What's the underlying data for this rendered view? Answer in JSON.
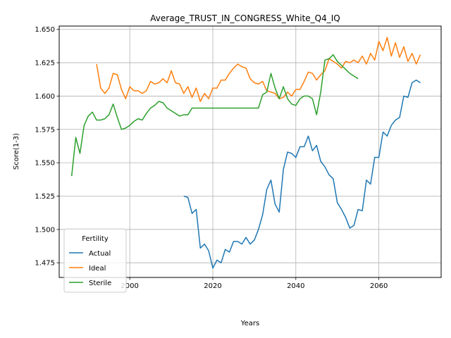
{
  "chart_data": {
    "type": "line",
    "title": "Average_TRUST_IN_CONGRESS_White_Q4_IQ",
    "xlabel": "Years",
    "ylabel": "Score(1-3)",
    "xlim": [
      1983,
      2075
    ],
    "ylim": [
      1.464,
      1.6525
    ],
    "xticks": [
      2000,
      2020,
      2040,
      2060
    ],
    "yticks": [
      1.475,
      1.5,
      1.525,
      1.55,
      1.575,
      1.6,
      1.625,
      1.65
    ],
    "ytick_labels": [
      "1.475",
      "1.500",
      "1.525",
      "1.550",
      "1.575",
      "1.600",
      "1.625",
      "1.650"
    ],
    "grid": true,
    "legend": {
      "title": "Fertility",
      "placement": "lower-left"
    },
    "series": [
      {
        "name": "Actual",
        "color": "#1f77b4",
        "x": [
          2013,
          2014,
          2015,
          2016,
          2017,
          2018,
          2019,
          2020,
          2021,
          2022,
          2023,
          2024,
          2025,
          2026,
          2027,
          2028,
          2029,
          2030,
          2031,
          2032,
          2033,
          2034,
          2035,
          2036,
          2037,
          2038,
          2039,
          2040,
          2041,
          2042,
          2043,
          2044,
          2045,
          2046,
          2047,
          2048,
          2049,
          2050,
          2051,
          2052,
          2053,
          2054,
          2055,
          2056,
          2057,
          2058,
          2059,
          2060,
          2061,
          2062,
          2063,
          2064,
          2065,
          2066,
          2067,
          2068,
          2069,
          2070
        ],
        "values": [
          1.525,
          1.524,
          1.512,
          1.515,
          1.486,
          1.489,
          1.484,
          1.471,
          1.477,
          1.475,
          1.485,
          1.483,
          1.491,
          1.491,
          1.489,
          1.494,
          1.489,
          1.492,
          1.5,
          1.511,
          1.53,
          1.537,
          1.519,
          1.513,
          1.545,
          1.558,
          1.557,
          1.554,
          1.562,
          1.562,
          1.57,
          1.559,
          1.563,
          1.551,
          1.547,
          1.541,
          1.538,
          1.52,
          1.515,
          1.509,
          1.501,
          1.503,
          1.515,
          1.514,
          1.537,
          1.534,
          1.554,
          1.554,
          1.573,
          1.57,
          1.578,
          1.582,
          1.584,
          1.6,
          1.599,
          1.61,
          1.612,
          1.61
        ]
      },
      {
        "name": "Ideal",
        "color": "#ff7f0e",
        "x": [
          1992,
          1993,
          1994,
          1995,
          1996,
          1997,
          1998,
          1999,
          2000,
          2001,
          2002,
          2003,
          2004,
          2005,
          2006,
          2007,
          2008,
          2009,
          2010,
          2011,
          2012,
          2013,
          2014,
          2015,
          2016,
          2017,
          2018,
          2019,
          2020,
          2021,
          2022,
          2023,
          2024,
          2025,
          2026,
          2027,
          2028,
          2029,
          2030,
          2031,
          2032,
          2033,
          2034,
          2035,
          2036,
          2037,
          2038,
          2039,
          2040,
          2041,
          2042,
          2043,
          2044,
          2045,
          2046,
          2047,
          2048,
          2049,
          2050,
          2051,
          2052,
          2053,
          2054,
          2055,
          2056,
          2057,
          2058,
          2059,
          2060,
          2061,
          2062,
          2063,
          2064,
          2065,
          2066,
          2067,
          2068,
          2069,
          2070
        ],
        "values": [
          1.624,
          1.606,
          1.602,
          1.606,
          1.617,
          1.616,
          1.605,
          1.598,
          1.607,
          1.604,
          1.604,
          1.602,
          1.604,
          1.611,
          1.609,
          1.61,
          1.613,
          1.61,
          1.619,
          1.61,
          1.609,
          1.602,
          1.607,
          1.599,
          1.606,
          1.596,
          1.602,
          1.598,
          1.606,
          1.606,
          1.612,
          1.612,
          1.617,
          1.621,
          1.624,
          1.622,
          1.621,
          1.613,
          1.61,
          1.609,
          1.611,
          1.604,
          1.603,
          1.602,
          1.598,
          1.599,
          1.603,
          1.6,
          1.605,
          1.605,
          1.611,
          1.618,
          1.617,
          1.612,
          1.616,
          1.619,
          1.628,
          1.626,
          1.624,
          1.621,
          1.626,
          1.625,
          1.627,
          1.625,
          1.63,
          1.624,
          1.632,
          1.627,
          1.641,
          1.634,
          1.644,
          1.63,
          1.64,
          1.629,
          1.637,
          1.626,
          1.632,
          1.624,
          1.631
        ]
      },
      {
        "name": "Sterile",
        "color": "#2ca02c",
        "x": [
          1986,
          1987,
          1988,
          1989,
          1990,
          1991,
          1992,
          1993,
          1994,
          1995,
          1996,
          1997,
          1998,
          1999,
          2000,
          2001,
          2002,
          2003,
          2004,
          2005,
          2006,
          2007,
          2008,
          2009,
          2010,
          2011,
          2012,
          2013,
          2014,
          2015,
          2016,
          2017,
          2018,
          2019,
          2020,
          2021,
          2022,
          2023,
          2024,
          2025,
          2026,
          2027,
          2028,
          2029,
          2030,
          2031,
          2032,
          2033,
          2034,
          2035,
          2036,
          2037,
          2038,
          2039,
          2040,
          2041,
          2042,
          2043,
          2044,
          2045,
          2046,
          2047,
          2048,
          2049,
          2050,
          2051,
          2052,
          2053,
          2054,
          2055
        ],
        "values": [
          1.54,
          1.569,
          1.557,
          1.578,
          1.585,
          1.588,
          1.582,
          1.582,
          1.583,
          1.586,
          1.594,
          1.584,
          1.575,
          1.576,
          1.578,
          1.581,
          1.583,
          1.582,
          1.587,
          1.591,
          1.593,
          1.596,
          1.595,
          1.591,
          1.589,
          1.587,
          1.585,
          1.586,
          1.586,
          1.591,
          1.591,
          1.591,
          1.591,
          1.591,
          1.591,
          1.591,
          1.591,
          1.591,
          1.591,
          1.591,
          1.591,
          1.591,
          1.591,
          1.591,
          1.591,
          1.591,
          1.601,
          1.603,
          1.617,
          1.606,
          1.598,
          1.607,
          1.598,
          1.594,
          1.593,
          1.598,
          1.6,
          1.6,
          1.598,
          1.586,
          1.603,
          1.627,
          1.628,
          1.631,
          1.626,
          1.623,
          1.62,
          1.617,
          1.615,
          1.613
        ]
      }
    ]
  }
}
